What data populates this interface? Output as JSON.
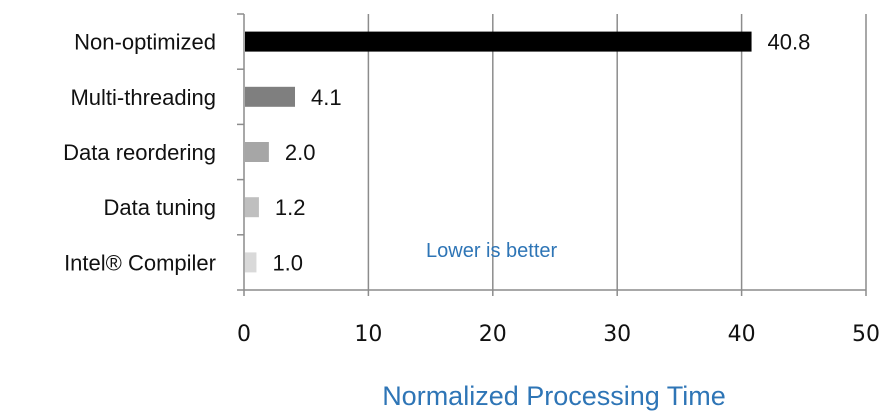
{
  "chart_data": {
    "type": "bar",
    "orientation": "horizontal",
    "categories": [
      "Non-optimized",
      "Multi-threading",
      "Data reordering",
      "Data tuning",
      "Intel® Compiler"
    ],
    "values": [
      40.8,
      4.1,
      2.0,
      1.2,
      1.0
    ],
    "value_labels": [
      "40.8",
      "4.1",
      "2.0",
      "1.2",
      "1.0"
    ],
    "bar_colors": [
      "#000000",
      "#7f7f7f",
      "#a6a6a6",
      "#bfbfbf",
      "#d9d9d9"
    ],
    "xlim": [
      0,
      50
    ],
    "xticks": [
      "0",
      "10",
      "20",
      "30",
      "40",
      "50"
    ],
    "xlabel": "Normalized Processing Time",
    "ylabel": "",
    "grid": true,
    "annotation": "Lower is better"
  },
  "colors": {
    "axis_label": "#2e75b6",
    "annotation": "#2e75b6",
    "grid": "#8c8c8c"
  }
}
